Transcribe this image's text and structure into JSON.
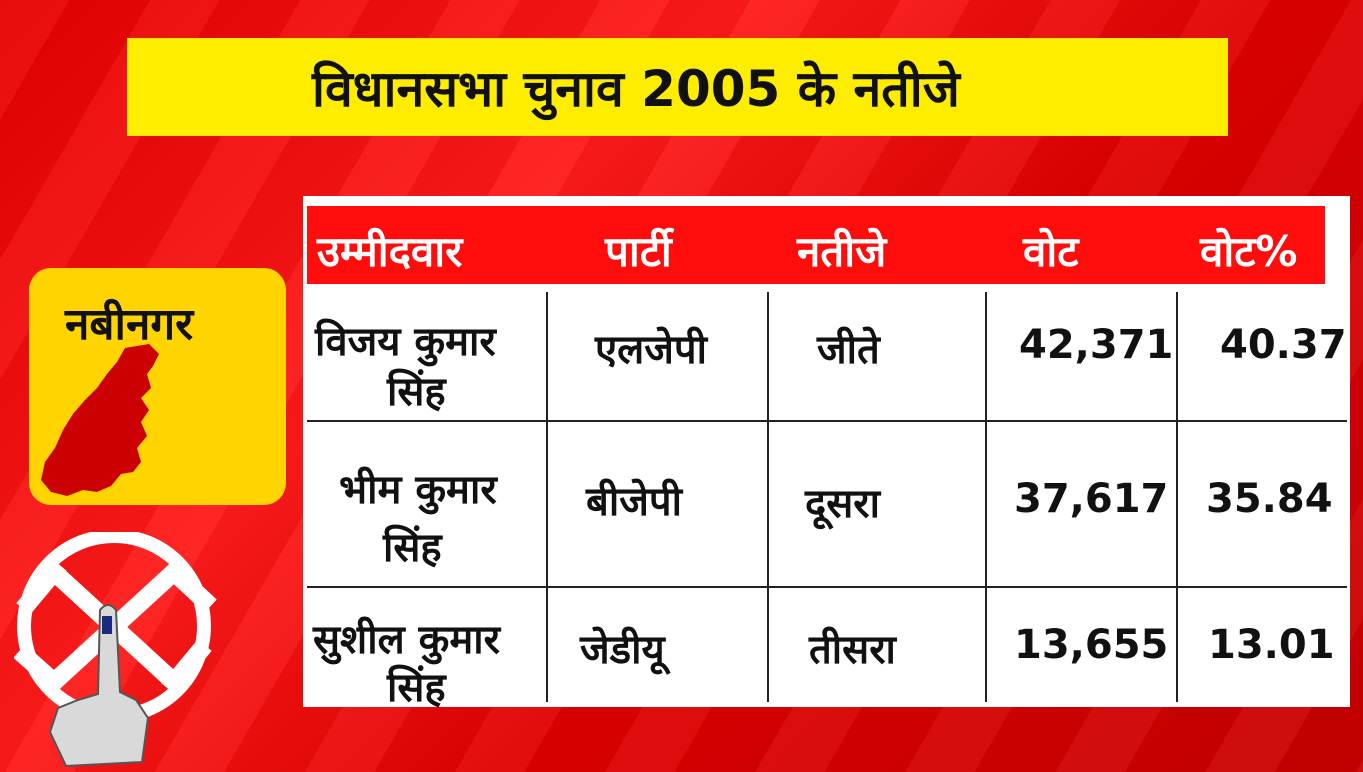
{
  "title": "विधानसभा चुनाव 2005 के नतीजे",
  "constituency": "नबीनगर",
  "table": {
    "headers": [
      "उम्मीदवार",
      "पार्टी",
      "नतीजे",
      "वोट",
      "वोट%"
    ],
    "rows": [
      {
        "candidate_line1": "विजय कुमार",
        "candidate_line2": "सिंह",
        "party": "एलजेपी",
        "result": "जीते",
        "votes": "42,371",
        "vote_pct": "40.37"
      },
      {
        "candidate_line1": "भीम कुमार",
        "candidate_line2": "सिंह",
        "party": "बीजेपी",
        "result": "दूसरा",
        "votes": "37,617",
        "vote_pct": "35.84"
      },
      {
        "candidate_line1": "सुशील कुमार",
        "candidate_line2": "सिंह",
        "party": "जेडीयू",
        "result": "तीसरा",
        "votes": "13,655",
        "vote_pct": "13.01"
      }
    ]
  },
  "colors": {
    "background_red": "#e60000",
    "banner_yellow": "#ffed00",
    "header_red": "#ff0d0d",
    "badge_yellow": "#ffd400",
    "map_red": "#cc0000"
  },
  "icons": {
    "map": "constituency-map-icon",
    "emblem": "swastika-voting-finger-emblem"
  }
}
